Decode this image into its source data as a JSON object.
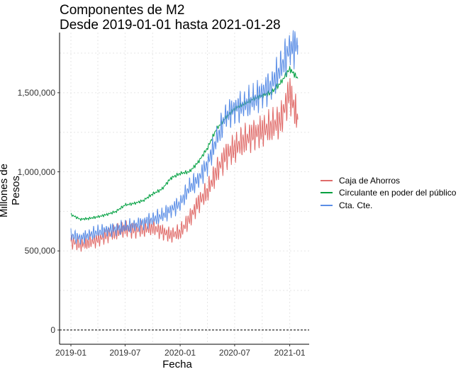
{
  "chart_data": {
    "type": "line",
    "title": "Componentes de M2",
    "subtitle": "Desde 2019-01-01 hasta 2021-01-28",
    "xlabel": "Fecha",
    "ylabel": "Millones de Pesos",
    "x_ticks": [
      "2019-01",
      "2019-07",
      "2020-01",
      "2020-07",
      "2021-01"
    ],
    "y_ticks": [
      "0",
      "500,000",
      "1,000,000",
      "1,500,000"
    ],
    "xlim": [
      "2019-01-01",
      "2021-01-28"
    ],
    "ylim": [
      -90000,
      1880000
    ],
    "grid": true,
    "legend_position": "right",
    "hline": 0,
    "series": [
      {
        "name": "Caja de Ahorros",
        "color": "#e06c6a",
        "x": [
          "2019-01-01",
          "2019-02-01",
          "2019-03-01",
          "2019-04-01",
          "2019-05-01",
          "2019-06-01",
          "2019-07-01",
          "2019-08-01",
          "2019-09-01",
          "2019-10-01",
          "2019-11-01",
          "2019-12-01",
          "2020-01-01",
          "2020-02-01",
          "2020-03-01",
          "2020-04-01",
          "2020-05-01",
          "2020-06-01",
          "2020-07-01",
          "2020-08-01",
          "2020-09-01",
          "2020-10-01",
          "2020-11-01",
          "2020-12-01",
          "2021-01-01",
          "2021-01-28"
        ],
        "values": [
          560000,
          540000,
          555000,
          570000,
          600000,
          620000,
          640000,
          630000,
          640000,
          650000,
          620000,
          600000,
          620000,
          700000,
          800000,
          880000,
          1000000,
          1100000,
          1150000,
          1200000,
          1230000,
          1260000,
          1290000,
          1320000,
          1500000,
          1330000
        ]
      },
      {
        "name": "Circulante en poder del público",
        "color": "#00a040",
        "x": [
          "2019-01-01",
          "2019-02-01",
          "2019-03-01",
          "2019-04-01",
          "2019-05-01",
          "2019-06-01",
          "2019-07-01",
          "2019-08-01",
          "2019-09-01",
          "2019-10-01",
          "2019-11-01",
          "2019-12-01",
          "2020-01-01",
          "2020-02-01",
          "2020-03-01",
          "2020-04-01",
          "2020-05-01",
          "2020-06-01",
          "2020-07-01",
          "2020-08-01",
          "2020-09-01",
          "2020-10-01",
          "2020-11-01",
          "2020-12-01",
          "2021-01-01",
          "2021-01-28"
        ],
        "values": [
          730000,
          700000,
          705000,
          715000,
          730000,
          750000,
          790000,
          800000,
          820000,
          860000,
          890000,
          960000,
          990000,
          1000000,
          1060000,
          1150000,
          1270000,
          1340000,
          1400000,
          1430000,
          1460000,
          1480000,
          1500000,
          1560000,
          1650000,
          1590000
        ]
      },
      {
        "name": "Cta. Cte.",
        "color": "#5b8ee6",
        "x": [
          "2019-01-01",
          "2019-02-01",
          "2019-03-01",
          "2019-04-01",
          "2019-05-01",
          "2019-06-01",
          "2019-07-01",
          "2019-08-01",
          "2019-09-01",
          "2019-10-01",
          "2019-11-01",
          "2019-12-01",
          "2020-01-01",
          "2020-02-01",
          "2020-03-01",
          "2020-04-01",
          "2020-05-01",
          "2020-06-01",
          "2020-07-01",
          "2020-08-01",
          "2020-09-01",
          "2020-10-01",
          "2020-11-01",
          "2020-12-01",
          "2021-01-01",
          "2021-01-28"
        ],
        "values": [
          600000,
          580000,
          600000,
          620000,
          630000,
          640000,
          650000,
          660000,
          680000,
          700000,
          720000,
          760000,
          800000,
          900000,
          950000,
          1050000,
          1200000,
          1350000,
          1400000,
          1420000,
          1450000,
          1500000,
          1550000,
          1650000,
          1780000,
          1800000
        ]
      }
    ]
  }
}
